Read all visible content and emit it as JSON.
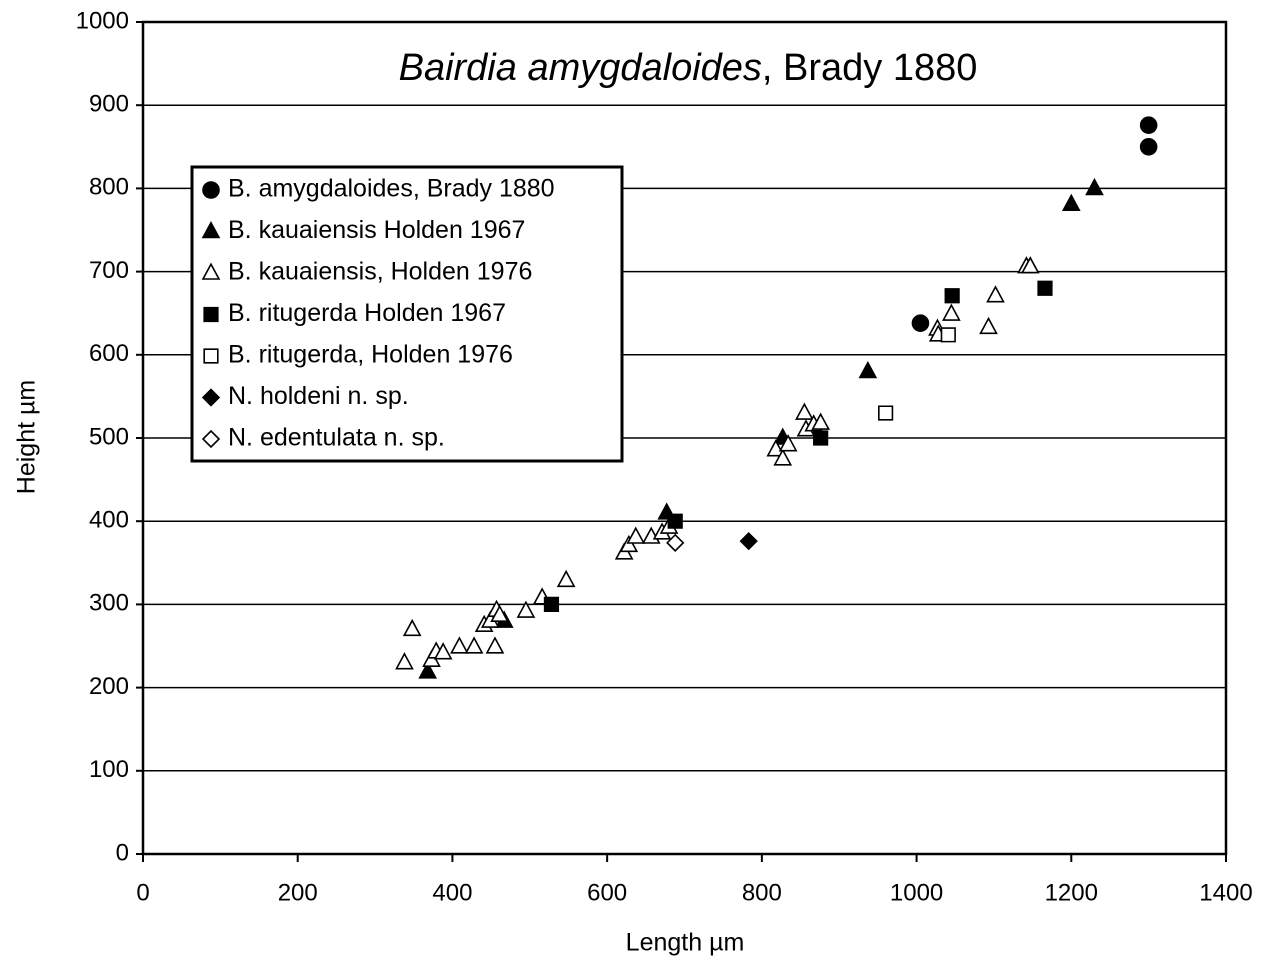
{
  "chart_data": {
    "type": "scatter",
    "title": "Bairdia amygdaloides",
    "title_suffix": ", Brady 1880",
    "x_label": "Length µm",
    "y_label": "Height µm",
    "xlim": [
      0,
      1400
    ],
    "xticks": [
      0,
      200,
      400,
      600,
      800,
      1000,
      1200,
      1400
    ],
    "ylim": [
      0,
      1000
    ],
    "yticks": [
      0,
      100,
      200,
      300,
      400,
      500,
      600,
      700,
      800,
      900,
      1000
    ],
    "grid": true,
    "legend": "upper left",
    "series": [
      {
        "name": "B. amygdaloides, Brady 1880",
        "color": "#000000",
        "marker": "circle",
        "filled": true,
        "x": [
          1300,
          1300,
          1005
        ],
        "y": [
          876,
          850,
          638
        ]
      },
      {
        "name": "B. kauaiensis Holden 1967",
        "color": "#000000",
        "marker": "triangle",
        "filled": true,
        "x": [
          1200,
          1230,
          937,
          827,
          677,
          467,
          368
        ],
        "y": [
          781,
          800,
          580,
          500,
          410,
          280,
          219
        ]
      },
      {
        "name": "B. kauaiensis, Holden 1976",
        "color": "#000000",
        "marker": "triangle",
        "filled": false,
        "x": [
          338,
          348,
          373,
          379,
          388,
          409,
          428,
          441,
          449,
          457,
          461,
          455,
          495,
          516,
          547,
          622,
          628,
          637,
          657,
          671,
          680,
          818,
          827,
          834,
          855,
          857,
          867,
          876,
          1027,
          1028,
          1045,
          1093,
          1102,
          1142,
          1147
        ],
        "y": [
          230,
          270,
          233,
          243,
          242,
          249,
          249,
          275,
          280,
          293,
          287,
          249,
          292,
          308,
          329,
          362,
          371,
          381,
          381,
          386,
          393,
          486,
          475,
          492,
          530,
          510,
          516,
          518,
          631,
          624,
          649,
          633,
          671,
          706,
          706
        ]
      },
      {
        "name": "B. ritugerda Holden 1967",
        "color": "#000000",
        "marker": "square",
        "filled": true,
        "x": [
          1046,
          1166,
          876,
          688,
          528
        ],
        "y": [
          671,
          680,
          500,
          400,
          300
        ]
      },
      {
        "name": "B. ritugerda, Holden 1976",
        "color": "#000000",
        "marker": "square",
        "filled": false,
        "x": [
          1041,
          960
        ],
        "y": [
          624,
          530
        ]
      },
      {
        "name": "N. holdeni n. sp.",
        "color": "#000000",
        "marker": "diamond",
        "filled": true,
        "x": [
          783
        ],
        "y": [
          376
        ]
      },
      {
        "name": "N. edentulata n. sp.",
        "color": "#000000",
        "marker": "diamond",
        "filled": false,
        "x": [
          688
        ],
        "y": [
          374
        ]
      }
    ]
  }
}
